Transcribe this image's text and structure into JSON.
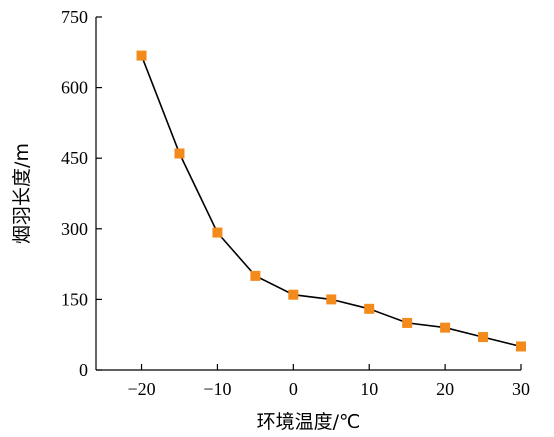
{
  "chart_data": {
    "type": "line",
    "xlabel": "环境温度/℃",
    "ylabel": "烟羽长度/m",
    "title": "",
    "xlim": [
      -26,
      30
    ],
    "ylim": [
      0,
      750
    ],
    "xticks": [
      -20,
      -10,
      0,
      10,
      20,
      30
    ],
    "yticks": [
      0,
      150,
      300,
      450,
      600,
      750
    ],
    "xtick_labels": [
      "−20",
      "−10",
      "0",
      "10",
      "20",
      "30"
    ],
    "ytick_labels": [
      "0",
      "150",
      "300",
      "450",
      "600",
      "750"
    ],
    "grid": false,
    "legend": "none",
    "series": [
      {
        "x": [
          -20,
          -15,
          -10,
          -5,
          0,
          5,
          10,
          15,
          20,
          25,
          30
        ],
        "y": [
          668,
          460,
          292,
          200,
          160,
          150,
          130,
          100,
          90,
          70,
          50
        ],
        "line_color": "#000000",
        "marker": "square",
        "marker_color": "#f28b1c"
      }
    ]
  }
}
